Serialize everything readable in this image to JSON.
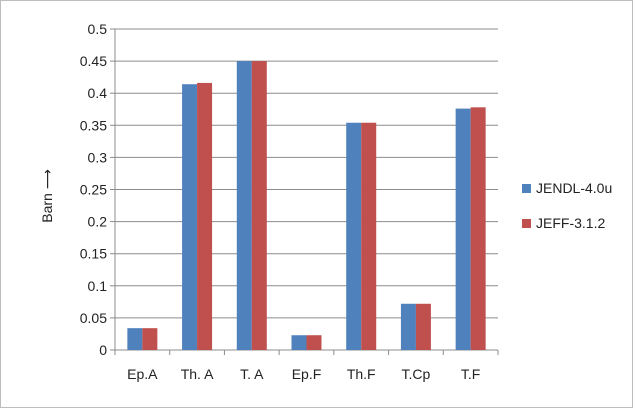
{
  "chart_data": {
    "type": "bar",
    "categories": [
      "Ep.A",
      "Th. A",
      "T. A",
      "Ep.F",
      "Th.F",
      "T.Cp",
      "T.F"
    ],
    "series": [
      {
        "name": "JENDL-4.0u",
        "color": "#4f81bd",
        "values": [
          0.034,
          0.414,
          0.45,
          0.023,
          0.354,
          0.072,
          0.376
        ]
      },
      {
        "name": "JEFF-3.1.2",
        "color": "#c0504d",
        "values": [
          0.034,
          0.416,
          0.45,
          0.023,
          0.354,
          0.072,
          0.378
        ]
      }
    ],
    "ylabel": "Barn ⟶",
    "xlabel": "",
    "ylim": [
      0,
      0.5
    ],
    "yticks": [
      0,
      0.05,
      0.1,
      0.15,
      0.2,
      0.25,
      0.3,
      0.35,
      0.4,
      0.45,
      0.5
    ],
    "ytick_labels": [
      "0",
      "0.05",
      "0.1",
      "0.15",
      "0.2",
      "0.25",
      "0.3",
      "0.35",
      "0.4",
      "0.45",
      "0.5"
    ],
    "grid": true,
    "legend_position": "right"
  }
}
